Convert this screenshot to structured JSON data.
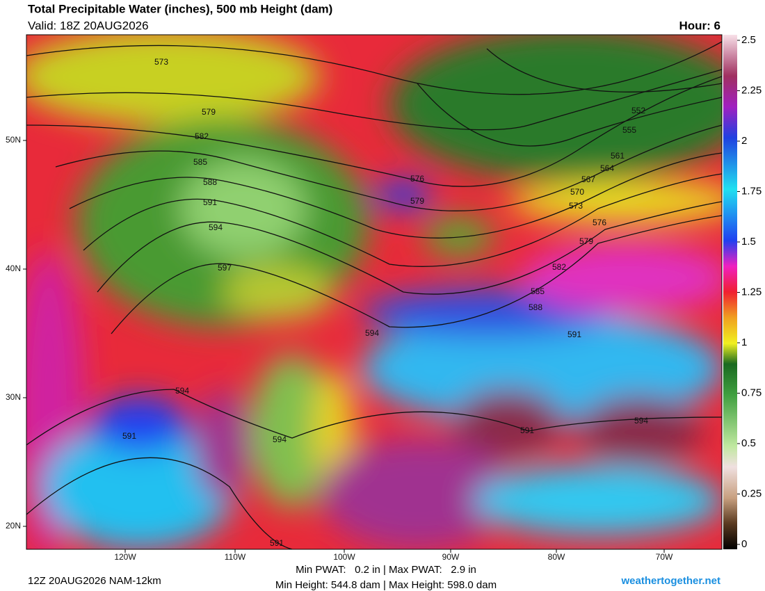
{
  "header": {
    "title": "Total Precipitable Water (inches), 500 mb Height (dam)",
    "valid": "Valid: 18Z 20AUG2026",
    "hour": "Hour: 6"
  },
  "colorbar": {
    "lim": [
      0,
      2.5
    ],
    "ticks": [
      2.5,
      2.25,
      2,
      1.75,
      1.5,
      1.25,
      1,
      0.75,
      0.5,
      0.25,
      0
    ]
  },
  "map": {
    "lat_labels": [
      "50N",
      "40N",
      "30N",
      "20N"
    ],
    "lon_labels": [
      "120W",
      "110W",
      "100W",
      "90W",
      "80W",
      "70W"
    ],
    "contour_labels": [
      573,
      579,
      582,
      585,
      588,
      591,
      594,
      597,
      594,
      576,
      579,
      552,
      555,
      561,
      564,
      567,
      570,
      573,
      576,
      579,
      582,
      585,
      588,
      591,
      594,
      594,
      591,
      594,
      591,
      591
    ]
  },
  "footer": {
    "run": "12Z 20AUG2026 NAM-12km",
    "pwat": "Min PWAT:   0.2 in | Max PWAT:   2.9 in",
    "height": "Min Height: 544.8 dam | Max Height: 598.0 dam",
    "site": "weathertogether.net"
  }
}
